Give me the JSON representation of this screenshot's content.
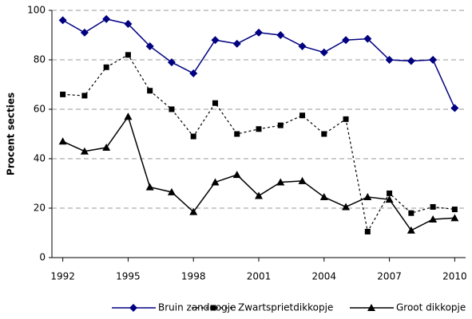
{
  "chart_data": {
    "type": "line",
    "y_label": "Procent secties",
    "x": [
      1992,
      1993,
      1994,
      1995,
      1996,
      1997,
      1998,
      1999,
      2000,
      2001,
      2002,
      2003,
      2004,
      2005,
      2006,
      2007,
      2008,
      2009,
      2010
    ],
    "series": [
      {
        "name": "Bruin zandoogje",
        "color": "#000080",
        "marker": "diamond",
        "line_style": "solid",
        "values": [
          96,
          91,
          96.5,
          94.5,
          85.5,
          79,
          74.5,
          88,
          86.5,
          91,
          90,
          85.5,
          83,
          88,
          88.5,
          80,
          79.5,
          80,
          60.5
        ]
      },
      {
        "name": "Zwartsprietdikkopje",
        "color": "#000000",
        "marker": "square",
        "line_style": "dotted",
        "values": [
          66,
          65.5,
          77,
          82,
          67.5,
          60,
          49,
          62.5,
          50,
          52,
          53.5,
          57.5,
          50,
          56,
          10.5,
          26,
          18,
          20.5,
          19.5
        ]
      },
      {
        "name": "Groot dikkopje",
        "color": "#000000",
        "marker": "triangle",
        "line_style": "solid",
        "values": [
          47,
          43,
          44.5,
          57,
          28.5,
          26.5,
          18.5,
          30.5,
          33.5,
          25,
          30.5,
          31,
          24.5,
          20.5,
          24.5,
          23.5,
          11,
          15.5,
          16
        ]
      }
    ],
    "xlim": [
      1991.5,
      2010.5
    ],
    "xticks": [
      1992,
      1995,
      1998,
      2001,
      2004,
      2007,
      2010
    ],
    "ylim": [
      0,
      100
    ],
    "yticks": [
      0,
      20,
      40,
      60,
      80,
      100
    ],
    "grid": true,
    "legend": "bottom"
  }
}
